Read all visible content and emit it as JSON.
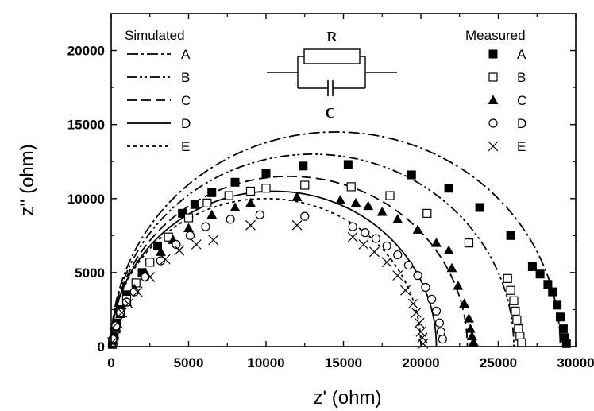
{
  "chart_data": {
    "type": "scatter",
    "title": "",
    "xlabel": "z' (ohm)",
    "ylabel": "z'' (ohm)",
    "xlim": [
      0,
      30000
    ],
    "ylim": [
      0,
      22500
    ],
    "xticks": [
      0,
      5000,
      10000,
      15000,
      20000,
      25000,
      30000
    ],
    "yticks": [
      0,
      5000,
      10000,
      15000,
      20000
    ],
    "legend_simulated_title": "Simulated",
    "legend_measured_title": "Measured",
    "legend_position": "top",
    "inset": {
      "resistor_label": "R",
      "capacitor_label": "C"
    },
    "simulated": [
      {
        "name": "A",
        "R": 29000,
        "dash": "14,4,3,4"
      },
      {
        "name": "B",
        "R": 26000,
        "dash": "12,4,3,3,3,4"
      },
      {
        "name": "C",
        "R": 23000,
        "dash": "12,6"
      },
      {
        "name": "D",
        "R": 21000,
        "dash": ""
      },
      {
        "name": "E",
        "R": 20000,
        "dash": "4,4"
      }
    ],
    "measured": [
      {
        "name": "A",
        "marker": "filled-square",
        "points": [
          [
            80,
            150
          ],
          [
            200,
            700
          ],
          [
            350,
            1600
          ],
          [
            600,
            2500
          ],
          [
            1000,
            3500
          ],
          [
            2000,
            5000
          ],
          [
            3000,
            6800
          ],
          [
            4600,
            9000
          ],
          [
            5400,
            9600
          ],
          [
            6500,
            10400
          ],
          [
            8000,
            11100
          ],
          [
            10000,
            11700
          ],
          [
            12400,
            12200
          ],
          [
            15300,
            12300
          ],
          [
            19400,
            11600
          ],
          [
            21800,
            10700
          ],
          [
            23800,
            9400
          ],
          [
            25800,
            7500
          ],
          [
            27200,
            5400
          ],
          [
            27700,
            4900
          ],
          [
            28200,
            4200
          ],
          [
            28500,
            3700
          ],
          [
            28800,
            2800
          ],
          [
            29000,
            2000
          ],
          [
            29200,
            1200
          ],
          [
            29300,
            600
          ],
          [
            29400,
            200
          ]
        ]
      },
      {
        "name": "B",
        "marker": "open-square",
        "points": [
          [
            100,
            300
          ],
          [
            300,
            1200
          ],
          [
            600,
            2300
          ],
          [
            1000,
            3200
          ],
          [
            1600,
            4300
          ],
          [
            2500,
            5700
          ],
          [
            3700,
            7400
          ],
          [
            5000,
            8700
          ],
          [
            6200,
            9700
          ],
          [
            7600,
            10200
          ],
          [
            9000,
            10500
          ],
          [
            10000,
            10700
          ],
          [
            12500,
            10900
          ],
          [
            15500,
            10800
          ],
          [
            18000,
            10200
          ],
          [
            20400,
            9000
          ],
          [
            23100,
            7000
          ],
          [
            25600,
            4600
          ],
          [
            25800,
            3800
          ],
          [
            26000,
            3100
          ],
          [
            26100,
            2400
          ],
          [
            26200,
            1800
          ],
          [
            26300,
            1200
          ],
          [
            26400,
            700
          ],
          [
            26500,
            250
          ]
        ]
      },
      {
        "name": "C",
        "marker": "filled-triangle",
        "points": [
          [
            100,
            400
          ],
          [
            300,
            1300
          ],
          [
            600,
            2200
          ],
          [
            1000,
            3000
          ],
          [
            1500,
            3900
          ],
          [
            2200,
            5000
          ],
          [
            3200,
            6400
          ],
          [
            4000,
            7200
          ],
          [
            5000,
            8000
          ],
          [
            6500,
            8900
          ],
          [
            8000,
            9400
          ],
          [
            9000,
            9700
          ],
          [
            12000,
            10100
          ],
          [
            14800,
            9900
          ],
          [
            15800,
            9700
          ],
          [
            16600,
            9500
          ],
          [
            17500,
            9100
          ],
          [
            18500,
            8600
          ],
          [
            19800,
            7900
          ],
          [
            21000,
            7000
          ],
          [
            21800,
            6500
          ],
          [
            22000,
            5300
          ],
          [
            22400,
            4100
          ],
          [
            22800,
            2900
          ],
          [
            23100,
            1900
          ],
          [
            23200,
            1200
          ],
          [
            23300,
            700
          ],
          [
            23400,
            300
          ]
        ]
      },
      {
        "name": "D",
        "marker": "open-circle",
        "points": [
          [
            100,
            500
          ],
          [
            300,
            1400
          ],
          [
            600,
            2300
          ],
          [
            1000,
            3000
          ],
          [
            1500,
            3700
          ],
          [
            2200,
            4700
          ],
          [
            3200,
            5800
          ],
          [
            4200,
            6900
          ],
          [
            5100,
            7500
          ],
          [
            6100,
            8100
          ],
          [
            7700,
            8600
          ],
          [
            9600,
            8900
          ],
          [
            12500,
            8800
          ],
          [
            15600,
            8100
          ],
          [
            16400,
            7700
          ],
          [
            17100,
            7300
          ],
          [
            17800,
            6800
          ],
          [
            18500,
            6200
          ],
          [
            19200,
            5500
          ],
          [
            19800,
            4800
          ],
          [
            20300,
            4000
          ],
          [
            20700,
            3200
          ],
          [
            21000,
            2400
          ],
          [
            21200,
            1600
          ],
          [
            21300,
            1000
          ],
          [
            21400,
            500
          ]
        ]
      },
      {
        "name": "E",
        "marker": "cross",
        "points": [
          [
            80,
            300
          ],
          [
            200,
            900
          ],
          [
            400,
            1600
          ],
          [
            700,
            2300
          ],
          [
            1100,
            2900
          ],
          [
            1700,
            3700
          ],
          [
            2500,
            4700
          ],
          [
            3500,
            5900
          ],
          [
            4400,
            6500
          ],
          [
            5500,
            6900
          ],
          [
            6600,
            7200
          ],
          [
            9000,
            8200
          ],
          [
            12000,
            8200
          ],
          [
            15600,
            7400
          ],
          [
            16300,
            6900
          ],
          [
            17000,
            6400
          ],
          [
            17800,
            5700
          ],
          [
            18500,
            4800
          ],
          [
            19000,
            3800
          ],
          [
            19500,
            2900
          ],
          [
            19700,
            2300
          ],
          [
            19900,
            1600
          ],
          [
            20000,
            1000
          ],
          [
            20100,
            600
          ],
          [
            20150,
            200
          ]
        ]
      }
    ]
  }
}
